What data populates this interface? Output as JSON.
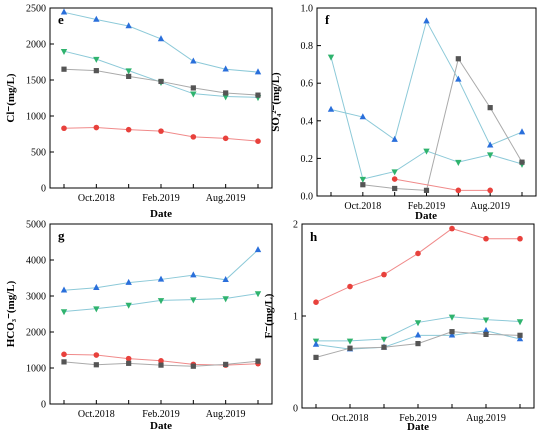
{
  "chart_data": [
    {
      "type": "line",
      "panel_label": "e",
      "ylabel": "Cl⁻(mg/L)",
      "xlabel": "Date",
      "ylim": [
        0,
        2500
      ],
      "yticks": [
        "0",
        "500",
        "1000",
        "1500",
        "2000",
        "2500"
      ],
      "yticks_num": [
        0,
        500,
        1000,
        1500,
        2000,
        2500
      ],
      "xticks": [
        "Oct.2018",
        "Feb.2019",
        "Aug.2019"
      ],
      "series": [
        {
          "marker": "triangle-up",
          "color": "#2a6fdb",
          "line_color": "#8cc9d8",
          "values": [
            2440,
            2340,
            2250,
            2070,
            1760,
            1650,
            1610
          ]
        },
        {
          "marker": "triangle-down",
          "color": "#2fb36e",
          "line_color": "#8cc9d8",
          "values": [
            1900,
            1790,
            1630,
            1470,
            1310,
            1270,
            1260
          ]
        },
        {
          "marker": "square",
          "color": "#555555",
          "line_color": "#aaaaaa",
          "values": [
            1650,
            1630,
            1550,
            1480,
            1390,
            1320,
            1290
          ]
        },
        {
          "marker": "circle",
          "color": "#e8413c",
          "line_color": "#f08a8a",
          "values": [
            830,
            840,
            810,
            790,
            710,
            690,
            650
          ]
        }
      ]
    },
    {
      "type": "line",
      "panel_label": "f",
      "ylabel": "SO₄²⁻(mg/L)",
      "xlabel": "Date",
      "ylim": [
        0,
        1.0
      ],
      "yticks": [
        "0.0",
        "0.2",
        "0.4",
        "0.6",
        "0.8",
        "1.0"
      ],
      "yticks_num": [
        0,
        0.2,
        0.4,
        0.6,
        0.8,
        1.0
      ],
      "xticks": [
        "Oct.2018",
        "Feb.2019",
        "Aug.2019"
      ],
      "series": [
        {
          "marker": "triangle-up",
          "color": "#2a6fdb",
          "line_color": "#8cc9d8",
          "values": [
            0.46,
            0.42,
            0.3,
            0.93,
            0.62,
            0.27,
            0.34
          ]
        },
        {
          "marker": "triangle-down",
          "color": "#2fb36e",
          "line_color": "#8cc9d8",
          "values": [
            0.74,
            0.09,
            0.13,
            0.24,
            0.18,
            0.22,
            0.17
          ]
        },
        {
          "marker": "square",
          "color": "#555555",
          "line_color": "#aaaaaa",
          "x_index": [
            1,
            2,
            3,
            4,
            5,
            6
          ],
          "values": [
            0.06,
            0.04,
            0.03,
            0.73,
            0.47,
            0.18
          ]
        },
        {
          "marker": "circle",
          "color": "#e8413c",
          "line_color": "#f08a8a",
          "x_index": [
            2,
            4,
            5
          ],
          "values": [
            0.09,
            0.03,
            0.03
          ]
        }
      ]
    },
    {
      "type": "line",
      "panel_label": "g",
      "ylabel": "HCO₃⁻(mg/L)",
      "xlabel": "Date",
      "ylim": [
        0,
        5000
      ],
      "yticks": [
        "0",
        "1000",
        "2000",
        "3000",
        "4000",
        "5000"
      ],
      "yticks_num": [
        0,
        1000,
        2000,
        3000,
        4000,
        5000
      ],
      "xticks": [
        "Oct.2018",
        "Feb.2019",
        "Aug.2019"
      ],
      "series": [
        {
          "marker": "triangle-up",
          "color": "#2a6fdb",
          "line_color": "#8cc9d8",
          "values": [
            3160,
            3230,
            3370,
            3460,
            3580,
            3450,
            4280
          ]
        },
        {
          "marker": "triangle-down",
          "color": "#2fb36e",
          "line_color": "#8cc9d8",
          "values": [
            2570,
            2650,
            2750,
            2880,
            2900,
            2930,
            3070
          ]
        },
        {
          "marker": "circle",
          "color": "#e8413c",
          "line_color": "#f08a8a",
          "values": [
            1380,
            1360,
            1260,
            1200,
            1100,
            1080,
            1120
          ]
        },
        {
          "marker": "square",
          "color": "#555555",
          "line_color": "#aaaaaa",
          "values": [
            1170,
            1090,
            1130,
            1080,
            1050,
            1100,
            1190
          ]
        }
      ]
    },
    {
      "type": "line",
      "panel_label": "h",
      "ylabel": "F⁻(mg/L)",
      "xlabel": "Date",
      "ylim": [
        0,
        2
      ],
      "yticks": [
        "0",
        "1",
        "2"
      ],
      "yticks_num": [
        0,
        1,
        2
      ],
      "xticks": [
        "Oct.2018",
        "Feb.2019",
        "Aug.2019"
      ],
      "series": [
        {
          "marker": "circle",
          "color": "#e8413c",
          "line_color": "#f08a8a",
          "values": [
            1.15,
            1.32,
            1.45,
            1.68,
            1.95,
            1.84,
            1.84
          ]
        },
        {
          "marker": "triangle-down",
          "color": "#2fb36e",
          "line_color": "#8cc9d8",
          "values": [
            0.73,
            0.73,
            0.75,
            0.93,
            0.99,
            0.96,
            0.94
          ]
        },
        {
          "marker": "triangle-up",
          "color": "#2a6fdb",
          "line_color": "#8cc9d8",
          "values": [
            0.69,
            0.64,
            0.66,
            0.79,
            0.79,
            0.84,
            0.75
          ]
        },
        {
          "marker": "square",
          "color": "#555555",
          "line_color": "#aaaaaa",
          "values": [
            0.55,
            0.65,
            0.66,
            0.7,
            0.83,
            0.8,
            0.79
          ]
        }
      ]
    }
  ]
}
